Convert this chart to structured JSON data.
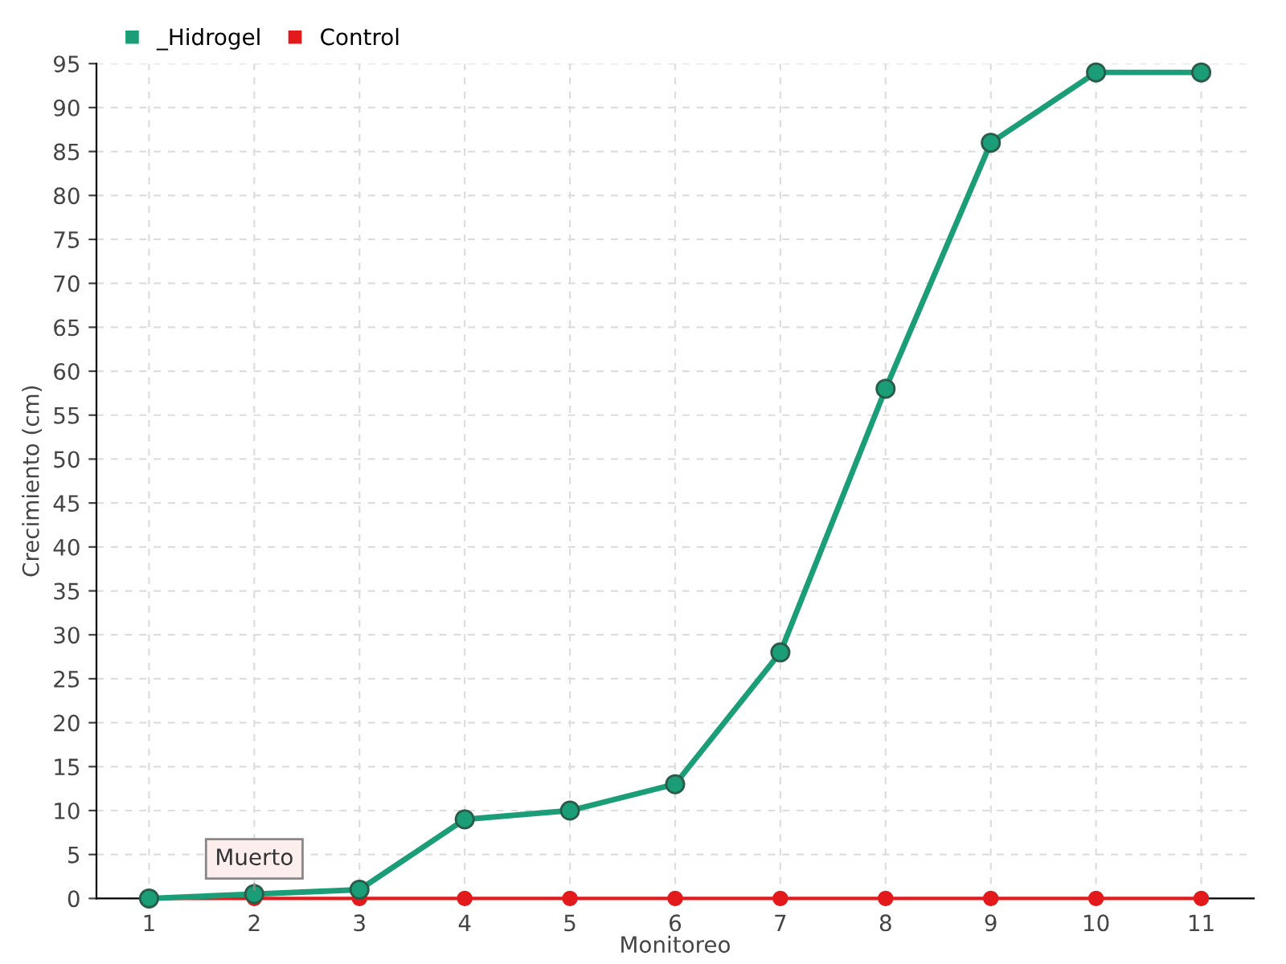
{
  "chart_data": {
    "type": "line",
    "xlabel": "Monitoreo",
    "ylabel": "Crecimiento (cm)",
    "categories": [
      "1",
      "2",
      "3",
      "4",
      "5",
      "6",
      "7",
      "8",
      "9",
      "10",
      "11"
    ],
    "series": [
      {
        "name": "_Hidrogel",
        "color": "#1b9e77",
        "values": [
          0,
          0.5,
          1,
          9,
          10,
          13,
          28,
          58,
          86,
          94,
          94
        ]
      },
      {
        "name": "Control",
        "color": "#e31a1c",
        "values": [
          0,
          0,
          0,
          0,
          0,
          0,
          0,
          0,
          0,
          0,
          0
        ]
      }
    ],
    "ylim": [
      0,
      95
    ],
    "yticks": [
      0,
      5,
      10,
      15,
      20,
      25,
      30,
      35,
      40,
      45,
      50,
      55,
      60,
      65,
      70,
      75,
      80,
      85,
      90,
      95
    ],
    "grid": true,
    "legend": "top left",
    "marker": "circle",
    "line_style": "solid",
    "annotations": [
      {
        "text": "Muerto",
        "x": "2",
        "y": 0.5
      }
    ]
  }
}
